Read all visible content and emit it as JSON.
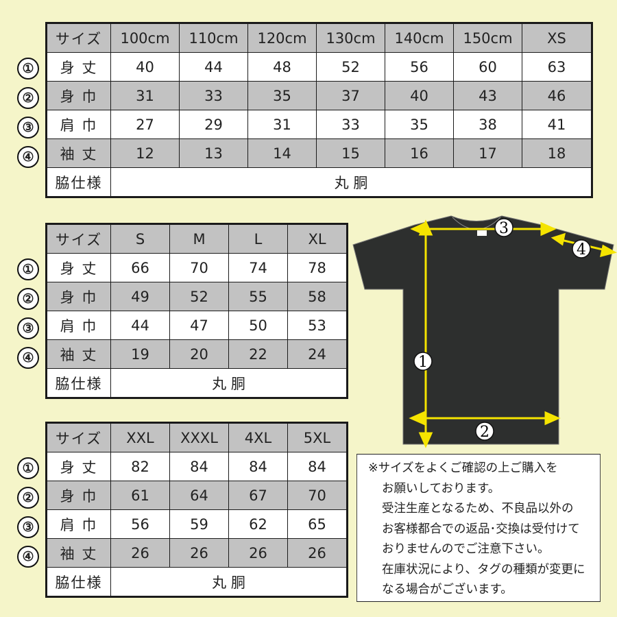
{
  "colors": {
    "background": "#f5f5c9",
    "header_gray": "#c2c2c2",
    "shirt": "#2d2f2e",
    "arrow": "#f5e400"
  },
  "markers": [
    "①",
    "②",
    "③",
    "④"
  ],
  "tables": [
    {
      "header": [
        "サイズ",
        "100cm",
        "110cm",
        "120cm",
        "130cm",
        "140cm",
        "150cm",
        "XS"
      ],
      "rows": [
        {
          "label": "身 丈",
          "values": [
            "40",
            "44",
            "48",
            "52",
            "56",
            "60",
            "63"
          ]
        },
        {
          "label": "身 巾",
          "values": [
            "31",
            "33",
            "35",
            "37",
            "40",
            "43",
            "46"
          ]
        },
        {
          "label": "肩 巾",
          "values": [
            "27",
            "29",
            "31",
            "33",
            "35",
            "38",
            "41"
          ]
        },
        {
          "label": "袖 丈",
          "values": [
            "12",
            "13",
            "14",
            "15",
            "16",
            "17",
            "18"
          ]
        }
      ],
      "side_label": "脇仕様",
      "side_value": "丸 胴"
    },
    {
      "header": [
        "サイズ",
        "S",
        "M",
        "L",
        "XL"
      ],
      "rows": [
        {
          "label": "身 丈",
          "values": [
            "66",
            "70",
            "74",
            "78"
          ]
        },
        {
          "label": "身 巾",
          "values": [
            "49",
            "52",
            "55",
            "58"
          ]
        },
        {
          "label": "肩 巾",
          "values": [
            "44",
            "47",
            "50",
            "53"
          ]
        },
        {
          "label": "袖 丈",
          "values": [
            "19",
            "20",
            "22",
            "24"
          ]
        }
      ],
      "side_label": "脇仕様",
      "side_value": "丸 胴"
    },
    {
      "header": [
        "サイズ",
        "XXL",
        "XXXL",
        "4XL",
        "5XL"
      ],
      "rows": [
        {
          "label": "身 丈",
          "values": [
            "82",
            "84",
            "84",
            "84"
          ]
        },
        {
          "label": "身 巾",
          "values": [
            "61",
            "64",
            "67",
            "70"
          ]
        },
        {
          "label": "肩 巾",
          "values": [
            "56",
            "59",
            "62",
            "65"
          ]
        },
        {
          "label": "袖 丈",
          "values": [
            "26",
            "26",
            "26",
            "26"
          ]
        }
      ],
      "side_label": "脇仕様",
      "side_value": "丸 胴"
    }
  ],
  "diagram": {
    "labels": [
      "1",
      "2",
      "3",
      "4"
    ]
  },
  "note": {
    "lines": [
      "※サイズをよくご確認の上ご購入を",
      "お願いしております。",
      "受注生産となるため、不良品以外の",
      "お客様都合での返品･交換は受付けて",
      "おりませんのでご注意下さい。",
      "在庫状況により、タグの種類が変更に",
      "なる場合がございます。"
    ]
  }
}
